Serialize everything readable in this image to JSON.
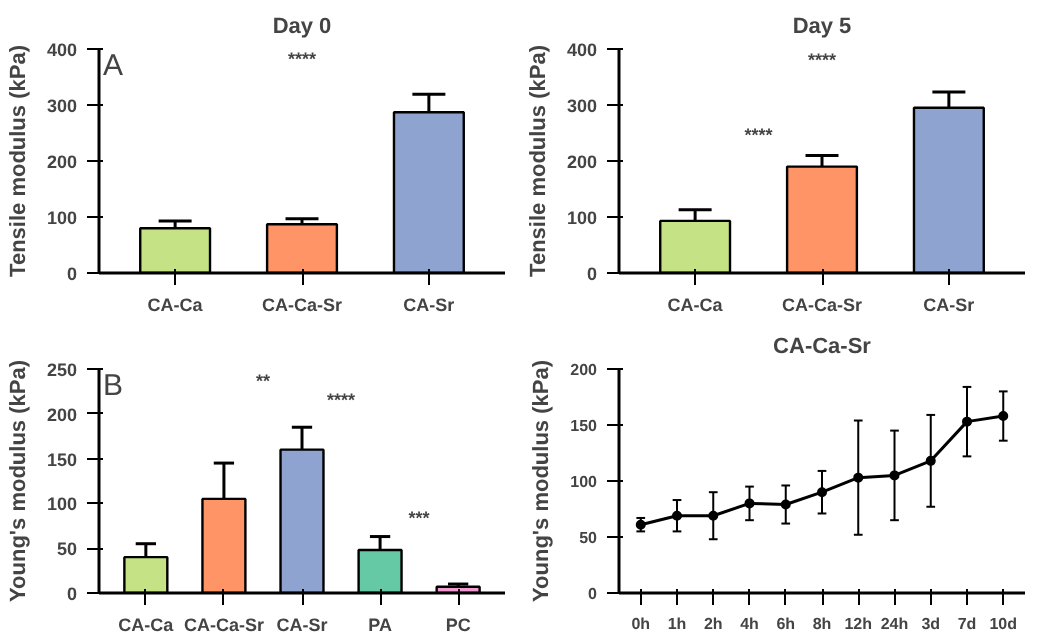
{
  "chart_data": [
    {
      "type": "bar",
      "title": "Day 0",
      "ylabel": "Tensile modulus (kPa)",
      "categories": [
        "CA-Ca",
        "CA-Ca-Sr",
        "CA-Sr"
      ],
      "values": [
        80,
        87,
        287
      ],
      "errors": [
        13,
        10,
        32
      ],
      "colors": [
        "#c5e384",
        "#ff9566",
        "#8fa3d0"
      ],
      "ylim": [
        0,
        400
      ],
      "yticks": [
        0,
        100,
        200,
        300,
        400
      ],
      "annotations": [
        "A",
        "****"
      ]
    },
    {
      "type": "bar",
      "title": "Day 5",
      "ylabel": "Tensile modulus (kPa)",
      "categories": [
        "CA-Ca",
        "CA-Ca-Sr",
        "CA-Sr"
      ],
      "values": [
        93,
        190,
        295
      ],
      "errors": [
        20,
        20,
        28
      ],
      "colors": [
        "#c5e384",
        "#ff9566",
        "#8fa3d0"
      ],
      "ylim": [
        0,
        400
      ],
      "yticks": [
        0,
        100,
        200,
        300,
        400
      ],
      "annotations": [
        "****",
        "****"
      ]
    },
    {
      "type": "bar",
      "ylabel": "Young's modulus (kPa)",
      "categories": [
        "CA-Ca",
        "CA-Ca-Sr",
        "CA-Sr",
        "PA",
        "PC"
      ],
      "values": [
        40,
        105,
        160,
        48,
        7
      ],
      "errors": [
        15,
        40,
        25,
        15,
        3
      ],
      "colors": [
        "#c5e384",
        "#ff9566",
        "#8fa3d0",
        "#66c9a6",
        "#f29bd3"
      ],
      "ylim": [
        0,
        250
      ],
      "yticks": [
        0,
        50,
        100,
        150,
        200,
        250
      ],
      "annotations": [
        "B",
        "**",
        "****",
        "***"
      ]
    },
    {
      "type": "line",
      "title": "CA-Ca-Sr",
      "ylabel": "Young's modulus (kPa)",
      "categories": [
        "0h",
        "1h",
        "2h",
        "4h",
        "6h",
        "8h",
        "12h",
        "24h",
        "3d",
        "7d",
        "10d"
      ],
      "values": [
        61,
        69,
        69,
        80,
        79,
        90,
        103,
        105,
        118,
        153,
        158
      ],
      "errors": [
        6,
        14,
        21,
        15,
        17,
        19,
        51,
        40,
        41,
        31,
        22
      ],
      "color": "#000000",
      "marker": "circle",
      "ylim": [
        0,
        200
      ],
      "yticks": [
        0,
        50,
        100,
        150,
        200
      ]
    }
  ]
}
